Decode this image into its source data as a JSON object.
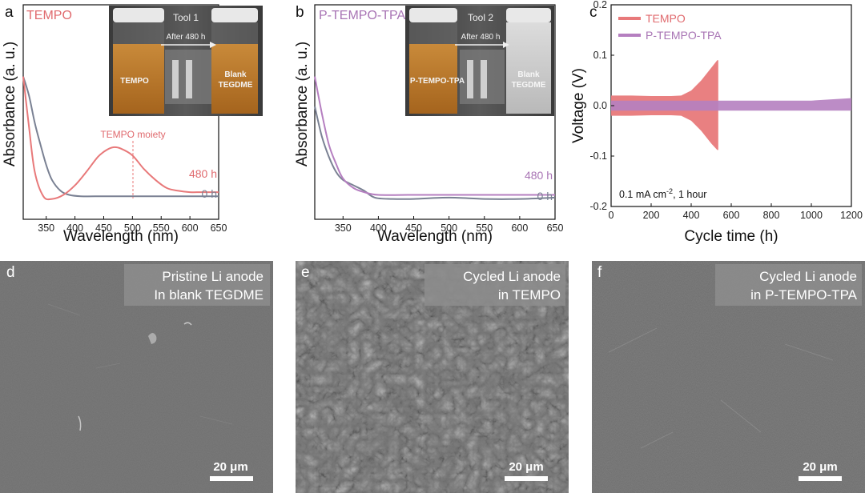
{
  "panels": {
    "a": {
      "letter": "a",
      "legend": "TEMPO",
      "photo": {
        "title": "Tool 1",
        "arrow_label": "After 480 h",
        "left_label": "TEMPO",
        "right_label_1": "Blank",
        "right_label_2": "TEGDME"
      },
      "annotation": "TEMPO moiety",
      "label_480": "480 h",
      "label_0": "0 h"
    },
    "b": {
      "letter": "b",
      "legend": "P-TEMPO-TPA",
      "photo": {
        "title": "Tool 2",
        "arrow_label": "After 480 h",
        "left_label": "P-TEMPO-TPA",
        "right_label_1": "Blank",
        "right_label_2": "TEGDME"
      },
      "label_480": "480 h",
      "label_0": "0 h"
    },
    "c": {
      "letter": "c",
      "legend_1": "TEMPO",
      "legend_2": "P-TEMPO-TPA",
      "condition": "0.1 mA cm",
      "condition_sup": "-2",
      "condition_tail": ", 1 hour"
    },
    "d": {
      "letter": "d",
      "line1": "Pristine Li anode",
      "line2": "In blank TEGDME",
      "scale": "20 μm"
    },
    "e": {
      "letter": "e",
      "line1": "Cycled Li anode",
      "line2": "in TEMPO",
      "scale": "20 μm"
    },
    "f": {
      "letter": "f",
      "line1": "Cycled Li anode",
      "line2": "in P-TEMPO-TPA",
      "scale": "20 μm"
    }
  },
  "colors": {
    "tempo": "#e8797a",
    "ptempo": "#b57fc0",
    "zero_h": "#7a8193",
    "tempo_text": "#e06a6e",
    "ptempo_text": "#a874b4"
  },
  "chart_data": [
    {
      "type": "line",
      "panel": "a",
      "xlabel": "Wavelength (nm)",
      "ylabel": "Absorbance (a. u.)",
      "xlim": [
        310,
        650
      ],
      "x_ticks": [
        350,
        400,
        450,
        500,
        550,
        600,
        650
      ],
      "y_ticks_shown": false,
      "series": [
        {
          "name": "480 h",
          "x": [
            310,
            320,
            330,
            345,
            360,
            380,
            400,
            420,
            440,
            455,
            467,
            480,
            500,
            520,
            540,
            560,
            580,
            600,
            620,
            650
          ],
          "y": [
            0.92,
            0.55,
            0.22,
            0.04,
            0.02,
            0.05,
            0.12,
            0.22,
            0.33,
            0.38,
            0.4,
            0.39,
            0.34,
            0.24,
            0.16,
            0.1,
            0.08,
            0.07,
            0.07,
            0.07
          ]
        },
        {
          "name": "0 h",
          "x": [
            310,
            320,
            330,
            340,
            350,
            360,
            375,
            390,
            410,
            450,
            500,
            550,
            600,
            650
          ],
          "y": [
            0.92,
            0.78,
            0.58,
            0.42,
            0.27,
            0.16,
            0.08,
            0.05,
            0.04,
            0.04,
            0.04,
            0.04,
            0.04,
            0.04
          ]
        }
      ],
      "annotations": [
        "TEMPO moiety",
        "480 h",
        "0 h"
      ]
    },
    {
      "type": "line",
      "panel": "b",
      "xlabel": "Wavelength (nm)",
      "ylabel": "Absorbance (a. u.)",
      "xlim": [
        310,
        650
      ],
      "x_ticks": [
        350,
        400,
        450,
        500,
        550,
        600,
        650
      ],
      "y_ticks_shown": false,
      "series": [
        {
          "name": "480 h",
          "x": [
            310,
            320,
            330,
            340,
            350,
            365,
            380,
            400,
            450,
            500,
            550,
            600,
            650
          ],
          "y": [
            0.92,
            0.65,
            0.42,
            0.28,
            0.17,
            0.1,
            0.07,
            0.05,
            0.05,
            0.05,
            0.05,
            0.05,
            0.05
          ]
        },
        {
          "name": "0 h",
          "x": [
            310,
            320,
            330,
            340,
            350,
            365,
            380,
            395,
            420,
            450,
            500,
            550,
            600,
            650
          ],
          "y": [
            0.7,
            0.48,
            0.33,
            0.22,
            0.16,
            0.12,
            0.08,
            0.03,
            0.02,
            0.02,
            0.03,
            0.02,
            0.02,
            0.03
          ]
        }
      ],
      "annotations": [
        "480 h",
        "0 h"
      ]
    },
    {
      "type": "line",
      "panel": "c",
      "xlabel": "Cycle time (h)",
      "ylabel": "Voltage (V)",
      "xlim": [
        0,
        1200
      ],
      "ylim": [
        -0.2,
        0.2
      ],
      "x_ticks": [
        0,
        200,
        400,
        600,
        800,
        1000,
        1200
      ],
      "y_ticks": [
        -0.2,
        -0.1,
        0.0,
        0.1,
        0.2
      ],
      "legend_position": "top-left",
      "series": [
        {
          "name": "TEMPO",
          "envelope_x": [
            0,
            100,
            200,
            300,
            350,
            400,
            450,
            500,
            530,
            535
          ],
          "envelope_upper": [
            0.02,
            0.02,
            0.019,
            0.019,
            0.02,
            0.03,
            0.05,
            0.075,
            0.09,
            0.09
          ],
          "envelope_lower": [
            -0.02,
            -0.02,
            -0.019,
            -0.019,
            -0.02,
            -0.03,
            -0.05,
            -0.075,
            -0.088,
            -0.088
          ]
        },
        {
          "name": "P-TEMPO-TPA",
          "envelope_x": [
            0,
            200,
            400,
            600,
            800,
            1000,
            1200
          ],
          "envelope_upper": [
            0.01,
            0.01,
            0.01,
            0.01,
            0.01,
            0.01,
            0.015
          ],
          "envelope_lower": [
            -0.01,
            -0.01,
            -0.01,
            -0.01,
            -0.01,
            -0.01,
            -0.01
          ]
        }
      ],
      "annotations": [
        "0.1 mA cm-2, 1 hour"
      ]
    }
  ]
}
